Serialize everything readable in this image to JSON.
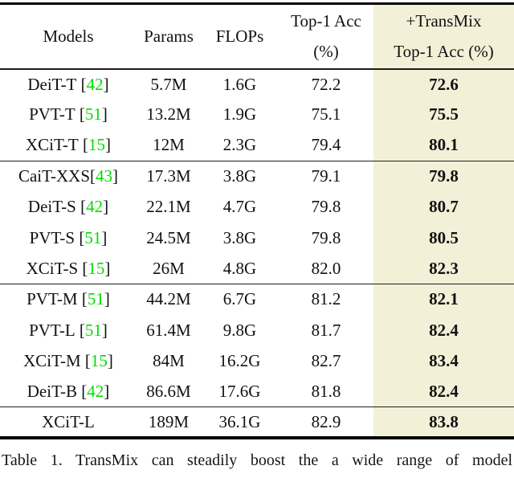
{
  "colors": {
    "highlight_column_bg": "#f3f0d8",
    "citation_green": "#00dd00",
    "text": "#111111",
    "rule": "#000000"
  },
  "table": {
    "header": {
      "models": "Models",
      "params": "Params",
      "flops": "FLOPs",
      "top1_line1": "Top-1 Acc",
      "top1_line2": "(%)",
      "transmix_line1": "+TransMix",
      "transmix_line2": "Top-1 Acc (%)"
    },
    "groups": [
      {
        "rows": [
          {
            "model": "DeiT-T",
            "cite": "42",
            "cite_space": true,
            "params": "5.7M",
            "flops": "1.6G",
            "top1": "72.2",
            "transmix_top1": "72.6"
          },
          {
            "model": "PVT-T",
            "cite": "51",
            "cite_space": true,
            "params": "13.2M",
            "flops": "1.9G",
            "top1": "75.1",
            "transmix_top1": "75.5"
          },
          {
            "model": "XCiT-T",
            "cite": "15",
            "cite_space": true,
            "params": "12M",
            "flops": "2.3G",
            "top1": "79.4",
            "transmix_top1": "80.1"
          }
        ]
      },
      {
        "rows": [
          {
            "model": "CaiT-XXS",
            "cite": "43",
            "cite_space": false,
            "params": "17.3M",
            "flops": "3.8G",
            "top1": "79.1",
            "transmix_top1": "79.8"
          },
          {
            "model": "DeiT-S",
            "cite": "42",
            "cite_space": true,
            "params": "22.1M",
            "flops": "4.7G",
            "top1": "79.8",
            "transmix_top1": "80.7"
          },
          {
            "model": "PVT-S",
            "cite": "51",
            "cite_space": true,
            "params": "24.5M",
            "flops": "3.8G",
            "top1": "79.8",
            "transmix_top1": "80.5"
          },
          {
            "model": "XCiT-S",
            "cite": "15",
            "cite_space": true,
            "params": "26M",
            "flops": "4.8G",
            "top1": "82.0",
            "transmix_top1": "82.3"
          }
        ]
      },
      {
        "rows": [
          {
            "model": "PVT-M",
            "cite": "51",
            "cite_space": true,
            "params": "44.2M",
            "flops": "6.7G",
            "top1": "81.2",
            "transmix_top1": "82.1"
          },
          {
            "model": "PVT-L",
            "cite": "51",
            "cite_space": true,
            "params": "61.4M",
            "flops": "9.8G",
            "top1": "81.7",
            "transmix_top1": "82.4"
          },
          {
            "model": "XCiT-M",
            "cite": "15",
            "cite_space": true,
            "params": "84M",
            "flops": "16.2G",
            "top1": "82.7",
            "transmix_top1": "83.4"
          },
          {
            "model": "DeiT-B",
            "cite": "42",
            "cite_space": true,
            "params": "86.6M",
            "flops": "17.6G",
            "top1": "81.8",
            "transmix_top1": "82.4"
          }
        ]
      },
      {
        "rows": [
          {
            "model": "XCiT-L",
            "cite": null,
            "cite_space": false,
            "params": "189M",
            "flops": "36.1G",
            "top1": "82.9",
            "transmix_top1": "83.8"
          }
        ]
      }
    ]
  },
  "caption": "Table 1. TransMix can steadily boost the a wide range of model"
}
